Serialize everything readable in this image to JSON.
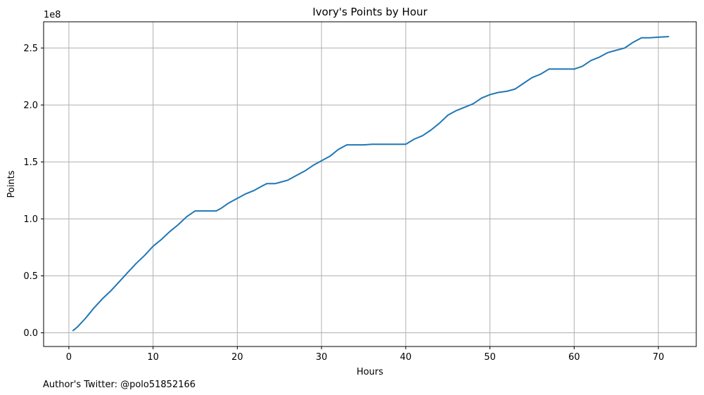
{
  "chart_data": {
    "type": "line",
    "title": "Ivory's Points by Hour",
    "xlabel": "Hours",
    "ylabel": "Points",
    "y_scale_label": "1e8",
    "footnote": "Author's Twitter: @polo51852166",
    "xlim": [
      -3,
      74.5
    ],
    "ylim": [
      -0.12,
      2.73
    ],
    "y_units": "1e8",
    "grid": true,
    "x_ticks": [
      0,
      10,
      20,
      30,
      40,
      50,
      60,
      70
    ],
    "x_tick_labels": [
      "0",
      "10",
      "20",
      "30",
      "40",
      "50",
      "60",
      "70"
    ],
    "y_ticks": [
      0.0,
      0.5,
      1.0,
      1.5,
      2.0,
      2.5
    ],
    "y_tick_labels": [
      "0.0",
      "0.5",
      "1.0",
      "1.5",
      "2.0",
      "2.5"
    ],
    "line_color": "#1f77b4",
    "series": [
      {
        "x": [
          0.5,
          1,
          2,
          3,
          4,
          5,
          6,
          7,
          8,
          9,
          10,
          11,
          12,
          13,
          14,
          15,
          16,
          17,
          17.5,
          18,
          19,
          20,
          21,
          22,
          23,
          23.5,
          24.5,
          25,
          26,
          27,
          28,
          29,
          30,
          31,
          32,
          33,
          35,
          36,
          38,
          40,
          41,
          42,
          43,
          44,
          45,
          46,
          47,
          48,
          49,
          50,
          51,
          52,
          53,
          54,
          55,
          56,
          57,
          58,
          59,
          60,
          61,
          62,
          63,
          64,
          65,
          66,
          67,
          68,
          69,
          70,
          71.2
        ],
        "y": [
          0.02,
          0.05,
          0.13,
          0.22,
          0.3,
          0.37,
          0.45,
          0.53,
          0.61,
          0.68,
          0.76,
          0.82,
          0.89,
          0.95,
          1.02,
          1.07,
          1.07,
          1.07,
          1.07,
          1.09,
          1.14,
          1.18,
          1.22,
          1.25,
          1.29,
          1.31,
          1.31,
          1.32,
          1.34,
          1.38,
          1.42,
          1.47,
          1.51,
          1.55,
          1.61,
          1.65,
          1.65,
          1.655,
          1.655,
          1.655,
          1.7,
          1.73,
          1.78,
          1.84,
          1.91,
          1.95,
          1.98,
          2.01,
          2.06,
          2.09,
          2.11,
          2.12,
          2.14,
          2.19,
          2.24,
          2.27,
          2.315,
          2.315,
          2.315,
          2.315,
          2.34,
          2.39,
          2.42,
          2.46,
          2.48,
          2.5,
          2.55,
          2.59,
          2.59,
          2.595,
          2.6
        ]
      }
    ]
  }
}
